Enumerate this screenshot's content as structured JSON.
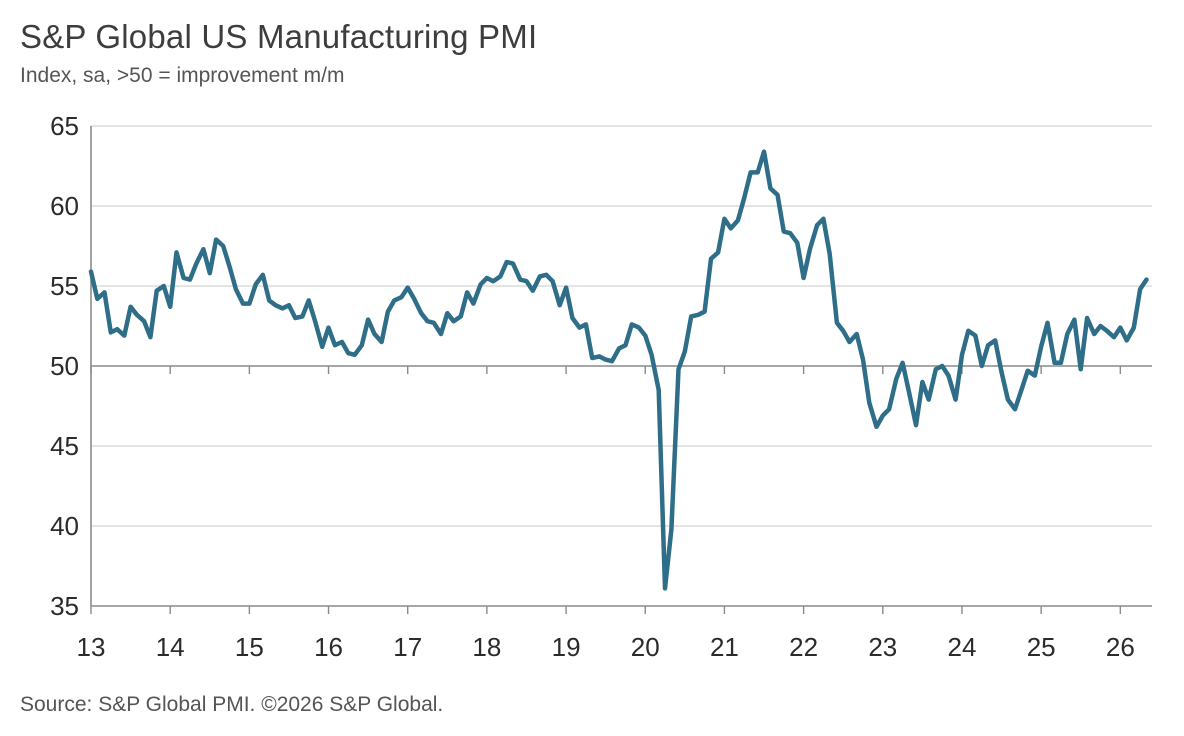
{
  "title": "S&P Global US Manufacturing PMI",
  "subtitle": "Index, sa, >50 = improvement m/m",
  "source": "Source: S&P Global PMI. ©2026 S&P Global.",
  "colors": {
    "line": "#2f6e88",
    "grid": "#c8c8c8",
    "axis": "#8a8a8a"
  },
  "chart_data": {
    "type": "line",
    "title": "S&P Global US Manufacturing PMI",
    "subtitle": "Index, sa, >50 = improvement m/m",
    "xlabel": "",
    "ylabel": "",
    "ylim": [
      35,
      65
    ],
    "yticks": [
      35,
      40,
      45,
      50,
      55,
      60,
      65
    ],
    "xlim": [
      2013.0,
      2026.4
    ],
    "xticks": [
      {
        "value": 2013,
        "label": "13"
      },
      {
        "value": 2014,
        "label": "14"
      },
      {
        "value": 2015,
        "label": "15"
      },
      {
        "value": 2016,
        "label": "16"
      },
      {
        "value": 2017,
        "label": "17"
      },
      {
        "value": 2018,
        "label": "18"
      },
      {
        "value": 2019,
        "label": "19"
      },
      {
        "value": 2020,
        "label": "20"
      },
      {
        "value": 2021,
        "label": "21"
      },
      {
        "value": 2022,
        "label": "22"
      },
      {
        "value": 2023,
        "label": "23"
      },
      {
        "value": 2024,
        "label": "24"
      },
      {
        "value": 2025,
        "label": "25"
      },
      {
        "value": 2026,
        "label": "26"
      }
    ],
    "grid": true,
    "reference_line": 50,
    "series": [
      {
        "points": [
          [
            2013.0,
            55.9
          ],
          [
            2013.08,
            54.2
          ],
          [
            2013.17,
            54.6
          ],
          [
            2013.25,
            52.1
          ],
          [
            2013.33,
            52.3
          ],
          [
            2013.42,
            51.9
          ],
          [
            2013.5,
            53.7
          ],
          [
            2013.58,
            53.2
          ],
          [
            2013.67,
            52.8
          ],
          [
            2013.75,
            51.8
          ],
          [
            2013.83,
            54.7
          ],
          [
            2013.92,
            55.0
          ],
          [
            2014.0,
            53.7
          ],
          [
            2014.08,
            57.1
          ],
          [
            2014.17,
            55.5
          ],
          [
            2014.25,
            55.4
          ],
          [
            2014.33,
            56.4
          ],
          [
            2014.42,
            57.3
          ],
          [
            2014.5,
            55.8
          ],
          [
            2014.58,
            57.9
          ],
          [
            2014.67,
            57.5
          ],
          [
            2014.75,
            56.2
          ],
          [
            2014.83,
            54.8
          ],
          [
            2014.92,
            53.9
          ],
          [
            2015.0,
            53.9
          ],
          [
            2015.08,
            55.1
          ],
          [
            2015.17,
            55.7
          ],
          [
            2015.25,
            54.1
          ],
          [
            2015.33,
            53.8
          ],
          [
            2015.42,
            53.6
          ],
          [
            2015.5,
            53.8
          ],
          [
            2015.58,
            53.0
          ],
          [
            2015.67,
            53.1
          ],
          [
            2015.75,
            54.1
          ],
          [
            2015.83,
            52.8
          ],
          [
            2015.92,
            51.2
          ],
          [
            2016.0,
            52.4
          ],
          [
            2016.08,
            51.3
          ],
          [
            2016.17,
            51.5
          ],
          [
            2016.25,
            50.8
          ],
          [
            2016.33,
            50.7
          ],
          [
            2016.42,
            51.3
          ],
          [
            2016.5,
            52.9
          ],
          [
            2016.58,
            52.0
          ],
          [
            2016.67,
            51.5
          ],
          [
            2016.75,
            53.4
          ],
          [
            2016.83,
            54.1
          ],
          [
            2016.92,
            54.3
          ],
          [
            2017.0,
            54.9
          ],
          [
            2017.08,
            54.2
          ],
          [
            2017.17,
            53.3
          ],
          [
            2017.25,
            52.8
          ],
          [
            2017.33,
            52.7
          ],
          [
            2017.42,
            52.0
          ],
          [
            2017.5,
            53.3
          ],
          [
            2017.58,
            52.8
          ],
          [
            2017.67,
            53.1
          ],
          [
            2017.75,
            54.6
          ],
          [
            2017.83,
            53.9
          ],
          [
            2017.92,
            55.1
          ],
          [
            2018.0,
            55.5
          ],
          [
            2018.08,
            55.3
          ],
          [
            2018.17,
            55.6
          ],
          [
            2018.25,
            56.5
          ],
          [
            2018.33,
            56.4
          ],
          [
            2018.42,
            55.4
          ],
          [
            2018.5,
            55.3
          ],
          [
            2018.58,
            54.7
          ],
          [
            2018.67,
            55.6
          ],
          [
            2018.75,
            55.7
          ],
          [
            2018.83,
            55.3
          ],
          [
            2018.92,
            53.8
          ],
          [
            2019.0,
            54.9
          ],
          [
            2019.08,
            53.0
          ],
          [
            2019.17,
            52.4
          ],
          [
            2019.25,
            52.6
          ],
          [
            2019.33,
            50.5
          ],
          [
            2019.42,
            50.6
          ],
          [
            2019.5,
            50.4
          ],
          [
            2019.58,
            50.3
          ],
          [
            2019.67,
            51.1
          ],
          [
            2019.75,
            51.3
          ],
          [
            2019.83,
            52.6
          ],
          [
            2019.92,
            52.4
          ],
          [
            2020.0,
            51.9
          ],
          [
            2020.08,
            50.7
          ],
          [
            2020.17,
            48.5
          ],
          [
            2020.25,
            36.1
          ],
          [
            2020.33,
            39.8
          ],
          [
            2020.42,
            49.8
          ],
          [
            2020.5,
            50.9
          ],
          [
            2020.58,
            53.1
          ],
          [
            2020.67,
            53.2
          ],
          [
            2020.75,
            53.4
          ],
          [
            2020.83,
            56.7
          ],
          [
            2020.92,
            57.1
          ],
          [
            2021.0,
            59.2
          ],
          [
            2021.08,
            58.6
          ],
          [
            2021.17,
            59.1
          ],
          [
            2021.25,
            60.5
          ],
          [
            2021.33,
            62.1
          ],
          [
            2021.42,
            62.1
          ],
          [
            2021.5,
            63.4
          ],
          [
            2021.58,
            61.1
          ],
          [
            2021.67,
            60.7
          ],
          [
            2021.75,
            58.4
          ],
          [
            2021.83,
            58.3
          ],
          [
            2021.92,
            57.7
          ],
          [
            2022.0,
            55.5
          ],
          [
            2022.08,
            57.3
          ],
          [
            2022.17,
            58.8
          ],
          [
            2022.25,
            59.2
          ],
          [
            2022.33,
            57.0
          ],
          [
            2022.42,
            52.7
          ],
          [
            2022.5,
            52.2
          ],
          [
            2022.58,
            51.5
          ],
          [
            2022.67,
            52.0
          ],
          [
            2022.75,
            50.4
          ],
          [
            2022.83,
            47.7
          ],
          [
            2022.92,
            46.2
          ],
          [
            2023.0,
            46.9
          ],
          [
            2023.08,
            47.3
          ],
          [
            2023.17,
            49.2
          ],
          [
            2023.25,
            50.2
          ],
          [
            2023.33,
            48.4
          ],
          [
            2023.42,
            46.3
          ],
          [
            2023.5,
            49.0
          ],
          [
            2023.58,
            47.9
          ],
          [
            2023.67,
            49.8
          ],
          [
            2023.75,
            50.0
          ],
          [
            2023.83,
            49.4
          ],
          [
            2023.92,
            47.9
          ],
          [
            2024.0,
            50.7
          ],
          [
            2024.08,
            52.2
          ],
          [
            2024.17,
            51.9
          ],
          [
            2024.25,
            50.0
          ],
          [
            2024.33,
            51.3
          ],
          [
            2024.42,
            51.6
          ],
          [
            2024.5,
            49.6
          ],
          [
            2024.58,
            47.9
          ],
          [
            2024.67,
            47.3
          ],
          [
            2024.75,
            48.5
          ],
          [
            2024.83,
            49.7
          ],
          [
            2024.92,
            49.4
          ],
          [
            2025.0,
            51.2
          ],
          [
            2025.08,
            52.7
          ],
          [
            2025.17,
            50.2
          ],
          [
            2025.25,
            50.2
          ],
          [
            2025.33,
            52.0
          ],
          [
            2025.42,
            52.9
          ],
          [
            2025.5,
            49.8
          ],
          [
            2025.58,
            53.0
          ],
          [
            2025.67,
            52.0
          ],
          [
            2025.75,
            52.5
          ],
          [
            2025.83,
            52.2
          ],
          [
            2025.92,
            51.8
          ],
          [
            2026.0,
            52.4
          ],
          [
            2026.08,
            51.6
          ],
          [
            2026.17,
            52.4
          ],
          [
            2026.25,
            54.8
          ],
          [
            2026.33,
            55.4
          ]
        ]
      }
    ]
  }
}
